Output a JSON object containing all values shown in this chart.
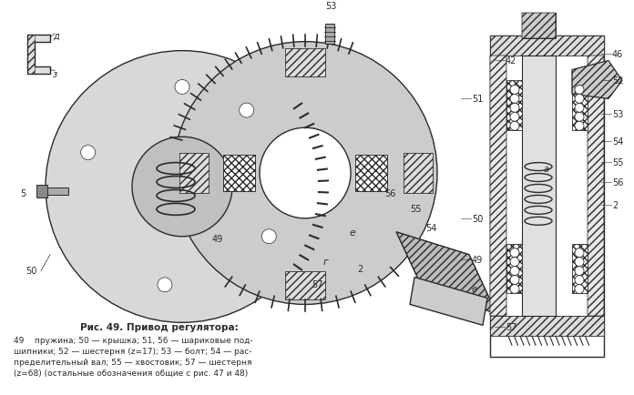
{
  "title": "",
  "caption_title": "Рис. 49. Привод регулятора:",
  "caption_lines": [
    "49    пружина; 50 — крышка; 51, 56 — шариковые под-",
    "шипники; 52 — шестерня (z=17); 53 — болт; 54 — рас-",
    "пределительный вал; 55 — хвостовик; 57 — шестерня",
    "(z=68) (остальные обозначения общие с рис. 47 и 48)"
  ],
  "bg_color": "#ffffff",
  "drawing_color": "#2a2a2a",
  "fig_width": 6.96,
  "fig_height": 4.35,
  "dpi": 100
}
